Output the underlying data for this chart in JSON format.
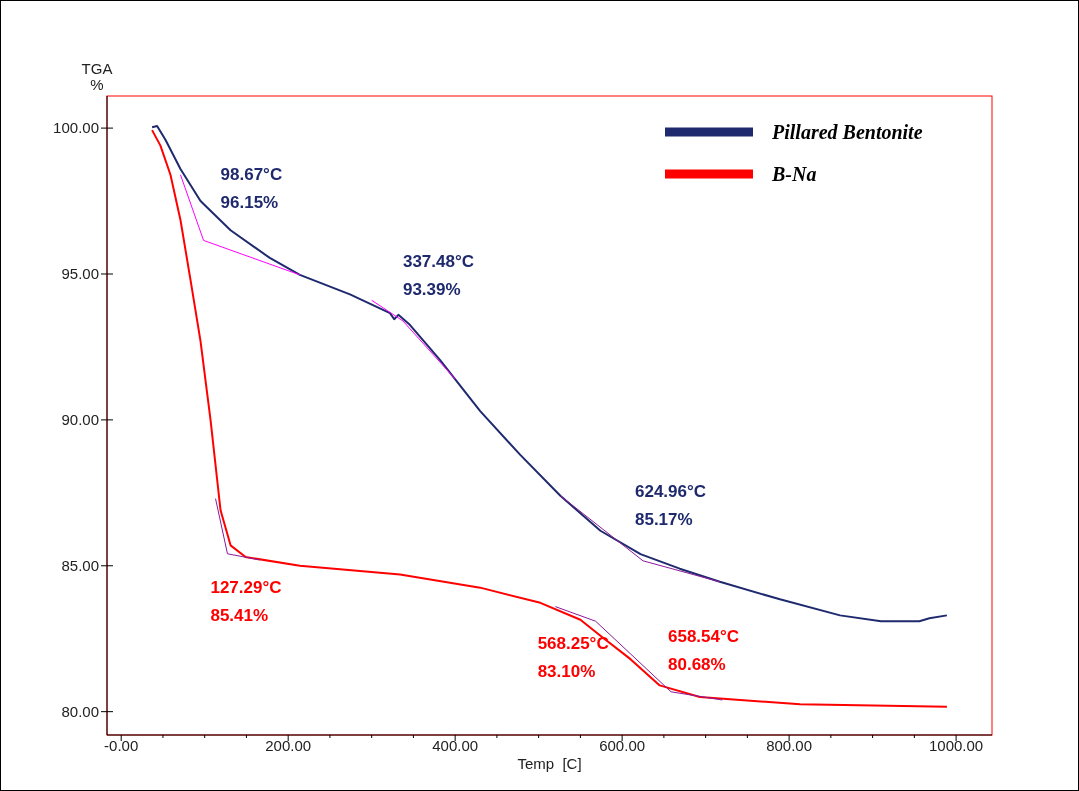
{
  "chart_data": {
    "type": "line",
    "xlabel": "Temp  [C]",
    "ylabel": "TGA\n%",
    "xlim": [
      -17,
      1043
    ],
    "ylim": [
      79.2,
      101.1
    ],
    "xticks": [
      {
        "value": 0,
        "label": "-0.00"
      },
      {
        "value": 200,
        "label": "200.00"
      },
      {
        "value": 400,
        "label": "400.00"
      },
      {
        "value": 600,
        "label": "600.00"
      },
      {
        "value": 800,
        "label": "800.00"
      },
      {
        "value": 1000,
        "label": "1000.00"
      }
    ],
    "yticks": [
      {
        "value": 80,
        "label": "80.00"
      },
      {
        "value": 85,
        "label": "85.00"
      },
      {
        "value": 90,
        "label": "90.00"
      },
      {
        "value": 95,
        "label": "95.00"
      },
      {
        "value": 100,
        "label": "100.00"
      }
    ],
    "grid": false,
    "legend": "top right",
    "marker": "none",
    "line_style": "solid",
    "series": [
      {
        "name": "Pillared Bentonite",
        "color": "#1f2a6e",
        "x": [
          37,
          43,
          53,
          71,
          95,
          131,
          178,
          214,
          274,
          322,
          327,
          332,
          346,
          382,
          430,
          478,
          526,
          574,
          622,
          669,
          717,
          789,
          861,
          910,
          956,
          968,
          989
        ],
        "values": [
          100.03,
          100.07,
          99.6,
          98.6,
          97.5,
          96.5,
          95.55,
          94.97,
          94.3,
          93.66,
          93.45,
          93.6,
          93.25,
          92.05,
          90.3,
          88.8,
          87.4,
          86.2,
          85.4,
          84.9,
          84.45,
          83.85,
          83.3,
          83.1,
          83.1,
          83.2,
          83.3
        ]
      },
      {
        "name": "B-Na",
        "color": "#ff0000",
        "x": [
          37,
          47,
          59,
          71,
          83,
          95,
          107,
          119,
          131,
          149,
          214,
          334,
          430,
          502,
          550,
          574,
          610,
          645,
          693,
          813,
          989
        ],
        "values": [
          99.93,
          99.4,
          98.4,
          96.85,
          94.8,
          92.7,
          90.0,
          86.9,
          85.7,
          85.3,
          85.0,
          84.7,
          84.25,
          83.73,
          83.15,
          82.6,
          81.8,
          80.9,
          80.5,
          80.25,
          80.17
        ]
      },
      {
        "color": "#ff00ff",
        "x": [
          71,
          98.67,
          214
        ],
        "values": [
          98.4,
          96.15,
          94.97
        ]
      },
      {
        "color": "#ff00ff",
        "x": [
          300,
          337.48,
          400
        ],
        "values": [
          94.1,
          93.39,
          91.4
        ]
      },
      {
        "color": "#8b1a9a",
        "x": [
          526,
          624.96,
          717
        ],
        "values": [
          87.4,
          85.17,
          84.45
        ]
      },
      {
        "color": "#8b1a9a",
        "x": [
          113,
          127.29,
          166
        ],
        "values": [
          87.3,
          85.41,
          85.2
        ]
      },
      {
        "color": "#8b1a9a",
        "x": [
          520,
          568.25,
          658.54,
          720
        ],
        "values": [
          83.6,
          83.1,
          80.68,
          80.4
        ]
      }
    ],
    "annotations": [
      {
        "text": "98.67°C\n96.15%",
        "x": 98.67,
        "y": 96.15
      },
      {
        "text": "337.48°C\n93.39%",
        "x": 337.48,
        "y": 93.39
      },
      {
        "text": "624.96°C\n85.17%",
        "x": 624.96,
        "y": 85.17
      },
      {
        "text": "127.29°C\n85.41%",
        "x": 127.29,
        "y": 85.41
      },
      {
        "text": "568.25°C\n83.10%",
        "x": 568.25,
        "y": 83.1
      },
      {
        "text": "658.54°C\n80.68%",
        "x": 658.54,
        "y": 80.68
      }
    ]
  }
}
